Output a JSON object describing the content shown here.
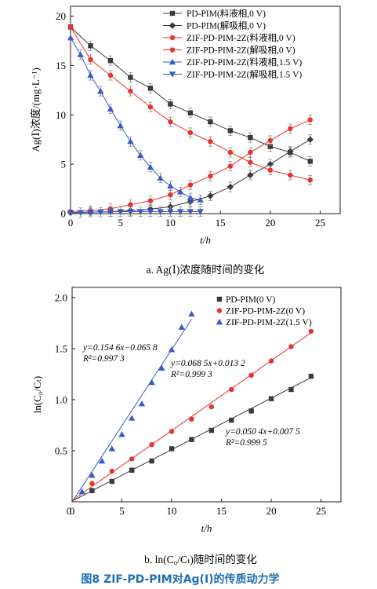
{
  "figure_caption": "图8 ZIF-PD-PIM对Ag(Ⅰ)的传质动力学",
  "colors": {
    "black": "#3a3a3a",
    "red": "#e8322b",
    "blue": "#3a5bc7"
  },
  "chart_data": [
    {
      "type": "line",
      "caption": "a. Ag(Ⅰ)浓度随时间的变化",
      "xlabel": "t/h",
      "ylabel": "Ag(Ⅰ)浓度/(mg·L⁻¹)",
      "xlim": [
        0,
        27
      ],
      "ylim": [
        0,
        21
      ],
      "xticks": [
        0,
        5,
        10,
        15,
        20,
        25
      ],
      "yticks": [
        0,
        5,
        10,
        15,
        20
      ],
      "legend_position": "top-right",
      "series": [
        {
          "name": "PD-PIM(料液相,0 V)",
          "marker": "square",
          "color": "#3a3a3a",
          "x": [
            0,
            2,
            4,
            6,
            8,
            10,
            12,
            14,
            16,
            18,
            20,
            22,
            24
          ],
          "y": [
            18.9,
            17.0,
            15.5,
            13.8,
            12.7,
            11.1,
            10.2,
            9.3,
            8.4,
            7.7,
            6.8,
            6.2,
            5.3
          ]
        },
        {
          "name": "PD-PIM(解吸相,0 V)",
          "marker": "diamond",
          "color": "#3a3a3a",
          "x": [
            0,
            2,
            4,
            6,
            8,
            10,
            12,
            14,
            16,
            18,
            20,
            22,
            24
          ],
          "y": [
            0.1,
            0.15,
            0.2,
            0.3,
            0.45,
            0.7,
            1.2,
            1.8,
            2.7,
            3.9,
            5.0,
            6.3,
            7.5
          ]
        },
        {
          "name": "ZIF-PD-PIM-2Z(料液相,0 V)",
          "marker": "circle",
          "color": "#e8322b",
          "x": [
            0,
            2,
            4,
            6,
            8,
            10,
            12,
            14,
            16,
            18,
            20,
            22,
            24
          ],
          "y": [
            18.9,
            15.6,
            14.0,
            12.4,
            10.8,
            9.3,
            8.2,
            7.3,
            6.2,
            5.2,
            4.4,
            3.9,
            3.4
          ]
        },
        {
          "name": "ZIF-PD-PIM-2Z(解吸相,0 V)",
          "marker": "circle",
          "color": "#e8322b",
          "x": [
            0,
            2,
            4,
            6,
            8,
            10,
            12,
            14,
            16,
            18,
            20,
            22,
            24
          ],
          "y": [
            0.2,
            0.3,
            0.5,
            0.9,
            1.3,
            1.9,
            2.9,
            3.8,
            4.8,
            6.2,
            7.4,
            8.6,
            9.5
          ]
        },
        {
          "name": "ZIF-PD-PIM-2Z(料液相,1.5 V)",
          "marker": "triangle-up",
          "color": "#3a5bc7",
          "x": [
            0,
            1,
            2,
            3,
            4,
            5,
            6,
            7,
            8,
            9,
            10,
            11,
            12,
            13
          ],
          "y": [
            17.8,
            16.1,
            14.0,
            12.4,
            10.6,
            8.9,
            7.3,
            5.9,
            4.7,
            3.6,
            2.8,
            2.2,
            1.6,
            1.4
          ]
        },
        {
          "name": "ZIF-PD-PIM-2Z(解吸相,1.5 V)",
          "marker": "triangle-down",
          "color": "#3a5bc7",
          "x": [
            0,
            1,
            2,
            3,
            4,
            5,
            6,
            7,
            8,
            9,
            10,
            11,
            12,
            13
          ],
          "y": [
            0.1,
            0.1,
            0.15,
            0.15,
            0.2,
            0.2,
            0.2,
            0.2,
            0.2,
            0.2,
            0.2,
            0.2,
            0.2,
            0.2
          ]
        }
      ]
    },
    {
      "type": "scatter",
      "caption": "b. ln(C₀/Cₜ)随时间的变化",
      "xlabel": "t/h",
      "ylabel": "ln(C₀/Cₜ)",
      "xlim": [
        0,
        27
      ],
      "ylim": [
        0,
        2.1
      ],
      "xticks": [
        0,
        5,
        10,
        15,
        20,
        25
      ],
      "yticks": [
        0.5,
        1.0,
        1.5,
        2.0
      ],
      "ytick_labels": [
        "0.5",
        "1.0",
        "1.5",
        "2.0"
      ],
      "legend_position": "top-right",
      "series": [
        {
          "name": "PD-PIM(0 V)",
          "marker": "square",
          "color": "#3a3a3a",
          "x": [
            2,
            4,
            6,
            8,
            10,
            12,
            14,
            16,
            18,
            20,
            22,
            24
          ],
          "y": [
            0.11,
            0.2,
            0.31,
            0.4,
            0.52,
            0.61,
            0.7,
            0.8,
            0.89,
            1.01,
            1.1,
            1.23
          ],
          "fit": {
            "slope": 0.0504,
            "intercept": 0.0075,
            "x_range": [
              0,
              24
            ],
            "equation": "y=0.050 4x+0.007 5",
            "r2": "R²=0.999 5"
          }
        },
        {
          "name": "ZIF-PD-PIM-2Z(0 V)",
          "marker": "circle",
          "color": "#e8322b",
          "x": [
            2,
            4,
            6,
            8,
            10,
            12,
            14,
            16,
            18,
            20,
            22,
            24
          ],
          "y": [
            0.18,
            0.3,
            0.42,
            0.56,
            0.69,
            0.81,
            0.93,
            1.1,
            1.24,
            1.38,
            1.52,
            1.67
          ],
          "fit": {
            "slope": 0.0685,
            "intercept": 0.0132,
            "x_range": [
              0,
              24
            ],
            "equation": "y=0.068 5x+0.013 2",
            "r2": "R²=0.999 3"
          }
        },
        {
          "name": "ZIF-PD-PIM-2Z(1.5 V)",
          "marker": "triangle-up",
          "color": "#3a5bc7",
          "x": [
            1,
            2,
            3,
            4,
            5,
            6,
            7,
            8,
            9,
            10,
            11,
            12
          ],
          "y": [
            0.1,
            0.26,
            0.4,
            0.52,
            0.66,
            0.82,
            0.96,
            1.17,
            1.31,
            1.49,
            1.71,
            1.84
          ],
          "fit": {
            "slope": 0.1546,
            "intercept": -0.0658,
            "x_range": [
              0,
              12
            ],
            "equation": "y=0.154 6x−0.065 8",
            "r2": "R²=0.997 3"
          }
        }
      ]
    }
  ]
}
